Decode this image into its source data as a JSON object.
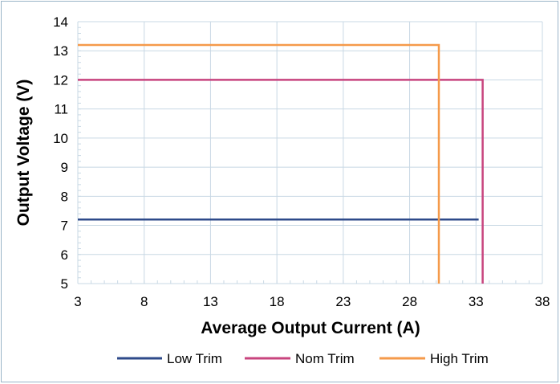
{
  "chart_data": {
    "type": "line",
    "title": "",
    "xlabel": "Average Output Current (A)",
    "ylabel": "Output Voltage (V)",
    "xlim": [
      3,
      38
    ],
    "ylim": [
      5,
      14
    ],
    "x_ticks": [
      3,
      8,
      13,
      18,
      23,
      28,
      33,
      38
    ],
    "y_ticks": [
      5,
      6,
      7,
      8,
      9,
      10,
      11,
      12,
      13,
      14
    ],
    "grid": true,
    "legend_position": "bottom",
    "series": [
      {
        "name": "Low Trim",
        "color": "#2e4a8a",
        "points": [
          [
            3,
            7.2
          ],
          [
            33.2,
            7.2
          ]
        ]
      },
      {
        "name": "Nom Trim",
        "color": "#c8447e",
        "points": [
          [
            3,
            12.0
          ],
          [
            33.5,
            12.0
          ],
          [
            33.5,
            5
          ]
        ]
      },
      {
        "name": "High Trim",
        "color": "#f59a4a",
        "points": [
          [
            3,
            13.2
          ],
          [
            30.2,
            13.2
          ],
          [
            30.2,
            5
          ]
        ]
      }
    ]
  }
}
